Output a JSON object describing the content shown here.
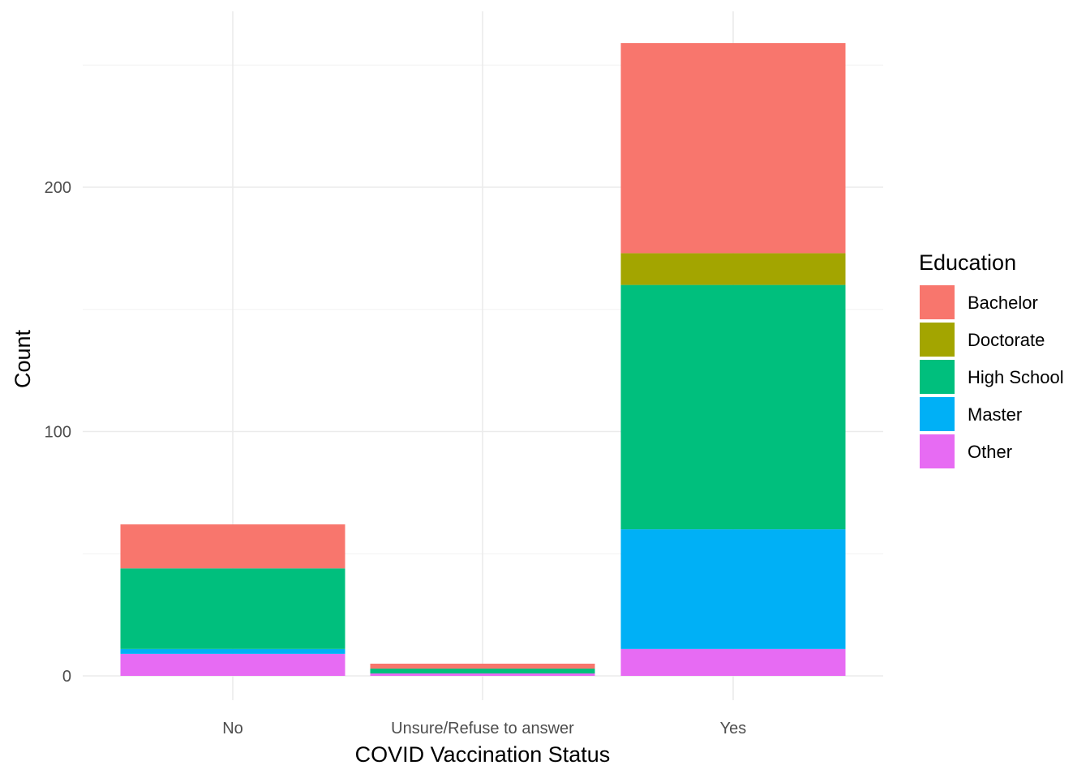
{
  "chart_data": {
    "type": "bar",
    "stacked": true,
    "categories": [
      "No",
      "Unsure/Refuse to answer",
      "Yes"
    ],
    "xlabel": "COVID Vaccination Status",
    "ylabel": "Count",
    "ylim": [
      0,
      270
    ],
    "y_ticks": [
      0,
      100,
      200
    ],
    "grid": true,
    "legend": {
      "title": "Education",
      "position": "right",
      "entries": [
        "Bachelor",
        "Doctorate",
        "High School",
        "Master",
        "Other"
      ]
    },
    "series": [
      {
        "name": "Bachelor",
        "color": "#F8766D",
        "values": [
          18,
          2,
          86
        ]
      },
      {
        "name": "Doctorate",
        "color": "#A3A500",
        "values": [
          0,
          0,
          13
        ]
      },
      {
        "name": "High School",
        "color": "#00BF7D",
        "values": [
          33,
          2,
          100
        ]
      },
      {
        "name": "Master",
        "color": "#00B0F6",
        "values": [
          2,
          0,
          49
        ]
      },
      {
        "name": "Other",
        "color": "#E76BF3",
        "values": [
          9,
          1,
          11
        ]
      }
    ]
  }
}
